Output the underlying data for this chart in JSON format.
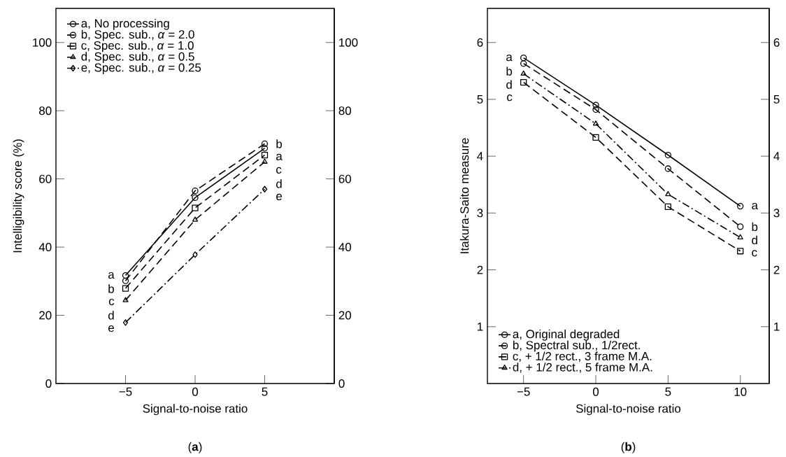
{
  "chart_data": [
    {
      "type": "line",
      "xlabel": "Signal-to-noise ratio",
      "ylabel": "Intelligibility score (%)",
      "x": [
        -5,
        0,
        5
      ],
      "xlim": [
        -10,
        10
      ],
      "xticks": [
        {
          "value": -5,
          "label": "−5"
        },
        0,
        5
      ],
      "ylim": [
        0,
        110
      ],
      "yticks": [
        0,
        20,
        40,
        60,
        80,
        100
      ],
      "y2lim": [
        0,
        110
      ],
      "y2ticks": [
        0,
        20,
        40,
        60,
        80,
        100
      ],
      "grid": false,
      "legend": "top left",
      "series": [
        {
          "name": "a, No processing",
          "color": "#000000",
          "marker": "circle",
          "line_style": "solid",
          "values": [
            31.7,
            54.5,
            69
          ]
        },
        {
          "name": "b, Spec. sub., *α* = 2.0",
          "color": "#000000",
          "marker": "circle",
          "line_style": "dashed",
          "values": [
            30.1,
            56.5,
            70.3
          ]
        },
        {
          "name": "c, Spec. sub., *α* = 1.0",
          "color": "#000000",
          "marker": "square",
          "line_style": "dashed",
          "values": [
            27.9,
            51.5,
            67
          ]
        },
        {
          "name": "d, Spec. sub., *α* = 0.5",
          "color": "#000000",
          "marker": "triangle",
          "line_style": "dashed",
          "values": [
            24.4,
            48,
            65
          ]
        },
        {
          "name": "e, Spec. sub., *α* = 0.25",
          "color": "#000000",
          "marker": "diamond",
          "line_style": "dashdot",
          "values": [
            17.9,
            37.8,
            57
          ]
        }
      ],
      "annotations": [
        "(**a**)",
        {
          "text": "a",
          "x": -5,
          "y": 31.7
        },
        {
          "text": "b",
          "x": -5,
          "y": 30.1
        },
        {
          "text": "c",
          "x": -5,
          "y": 27.9
        },
        {
          "text": "d",
          "x": -5,
          "y": 24.4
        },
        {
          "text": "e",
          "x": -5,
          "y": 17.9
        },
        {
          "text": "b",
          "x": 5,
          "y": 70.3
        },
        {
          "text": "a",
          "x": 5,
          "y": 69
        },
        {
          "text": "c",
          "x": 5,
          "y": 67
        },
        {
          "text": "d",
          "x": 5,
          "y": 65
        },
        {
          "text": "e",
          "x": 5,
          "y": 57
        }
      ]
    },
    {
      "type": "line",
      "xlabel": "Signal-to-noise ratio",
      "ylabel": "Itakura-Saito measure",
      "x": [
        -5,
        0,
        5,
        10
      ],
      "xlim": [
        -7.5,
        12
      ],
      "xticks": [
        {
          "value": -5,
          "label": "−5"
        },
        0,
        5,
        10
      ],
      "ylim": [
        0,
        6.6
      ],
      "yticks": [
        1,
        2,
        3,
        4,
        5,
        6
      ],
      "y2lim": [
        0,
        6.6
      ],
      "y2ticks": [
        1,
        2,
        3,
        4,
        5,
        6
      ],
      "grid": false,
      "legend": "bottom left",
      "series": [
        {
          "name": "a, Original degraded",
          "color": "#000000",
          "marker": "circle",
          "line_style": "solid",
          "values": [
            5.73,
            4.9,
            4.02,
            3.12
          ]
        },
        {
          "name": "b, Spectral sub., 1/2rect.",
          "color": "#000000",
          "marker": "circle",
          "line_style": "dashed",
          "values": [
            5.63,
            4.82,
            3.78,
            2.76
          ]
        },
        {
          "name": "c, + 1/2 rect., 3 frame M.A.",
          "color": "#000000",
          "marker": "square",
          "line_style": "dashed",
          "values": [
            5.3,
            4.33,
            3.11,
            2.33
          ]
        },
        {
          "name": "d, + 1/2 rect., 5 frame M.A.",
          "color": "#000000",
          "marker": "triangle",
          "line_style": "dashdot",
          "values": [
            5.45,
            4.57,
            3.33,
            2.57
          ]
        }
      ],
      "annotations": [
        "(**b**)",
        {
          "text": "a",
          "x": -5,
          "y": 5.73
        },
        {
          "text": "b",
          "x": -5,
          "y": 5.63
        },
        {
          "text": "d",
          "x": -5,
          "y": 5.45
        },
        {
          "text": "c",
          "x": -5,
          "y": 5.3
        },
        {
          "text": "a",
          "x": 10,
          "y": 3.12
        },
        {
          "text": "b",
          "x": 10,
          "y": 2.76
        },
        {
          "text": "d",
          "x": 10,
          "y": 2.57
        },
        {
          "text": "c",
          "x": 10,
          "y": 2.33
        }
      ]
    }
  ]
}
